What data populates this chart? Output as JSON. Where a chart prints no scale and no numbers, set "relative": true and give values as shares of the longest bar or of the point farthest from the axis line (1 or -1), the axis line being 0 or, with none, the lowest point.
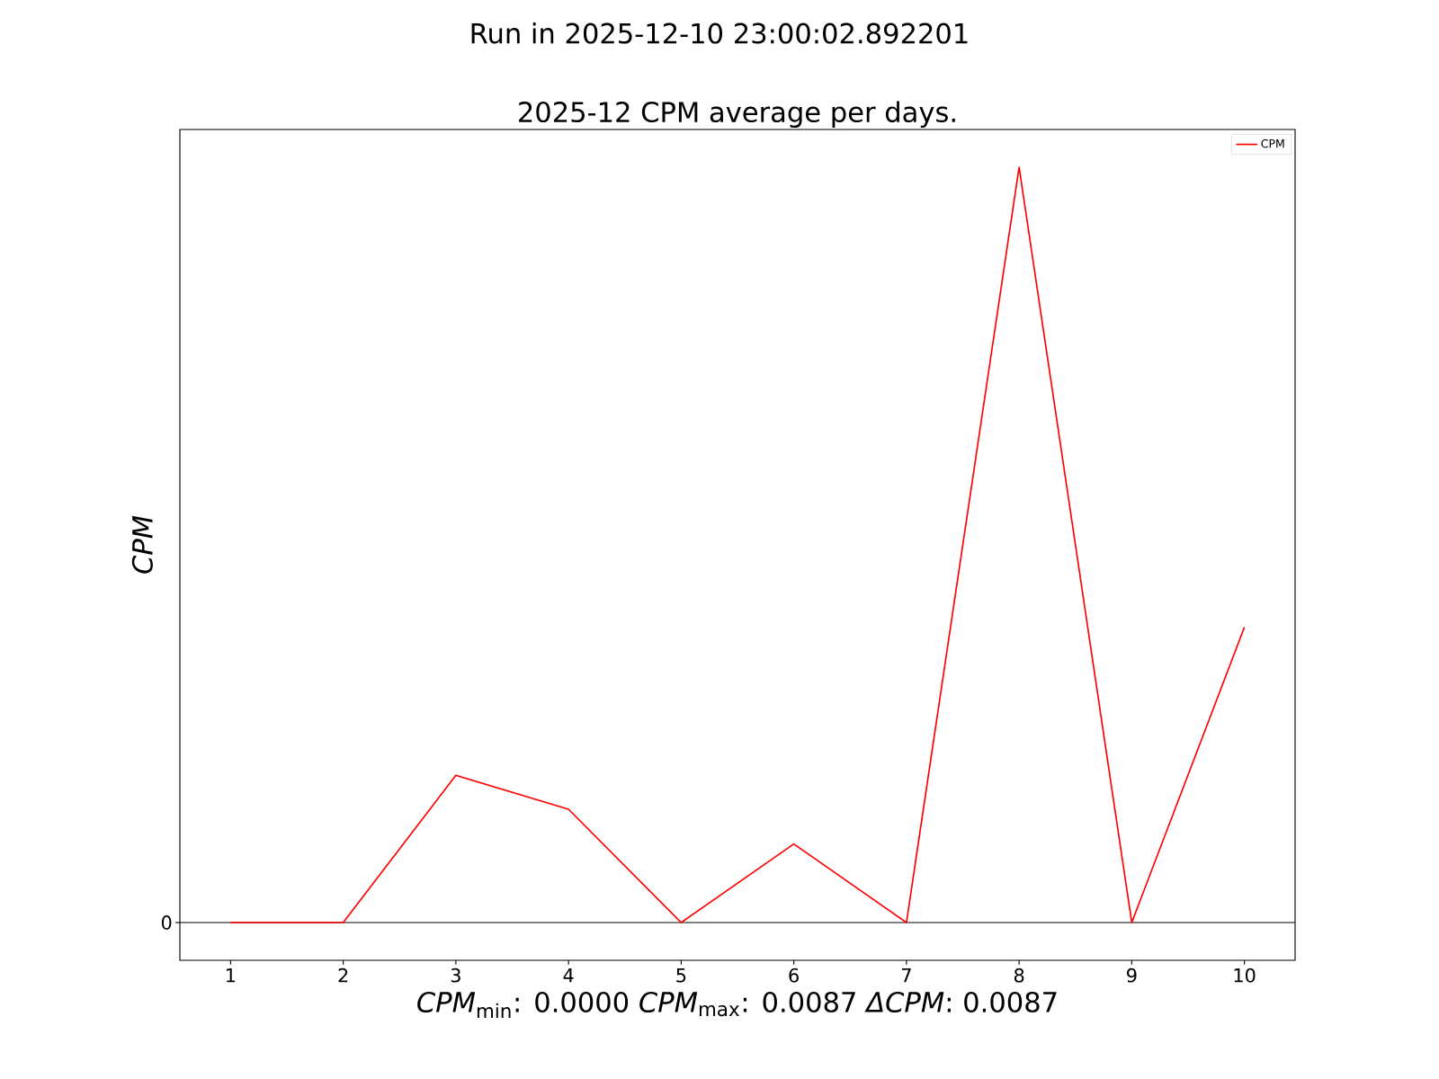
{
  "chart_data": {
    "type": "line",
    "title": "Run in 2025-12-10 23:00:02.892201",
    "subtitle": "2025-12 CPM average per days.",
    "xlabel": "*CPM*$_{min}$: 0.0000   *CPM*$_{max}$: 0.0087   *ΔCPM*: 0.0087",
    "ylabel": "CPM",
    "x": [
      1,
      2,
      3,
      4,
      5,
      6,
      7,
      8,
      9,
      10
    ],
    "xlim": [
      0.55,
      10.45
    ],
    "xticks": [
      1,
      2,
      3,
      4,
      5,
      6,
      7,
      8,
      9,
      10
    ],
    "relative": true,
    "series": [
      {
        "name": "CPM",
        "color": "#ff0000",
        "values": [
          0,
          0,
          0.195,
          0.15,
          0,
          0.104,
          0,
          1,
          0,
          0.391
        ]
      }
    ],
    "ref_lines": [
      {
        "axis": "y",
        "value": 0,
        "label": "0",
        "color": "#000000"
      }
    ],
    "legend": "top right"
  }
}
